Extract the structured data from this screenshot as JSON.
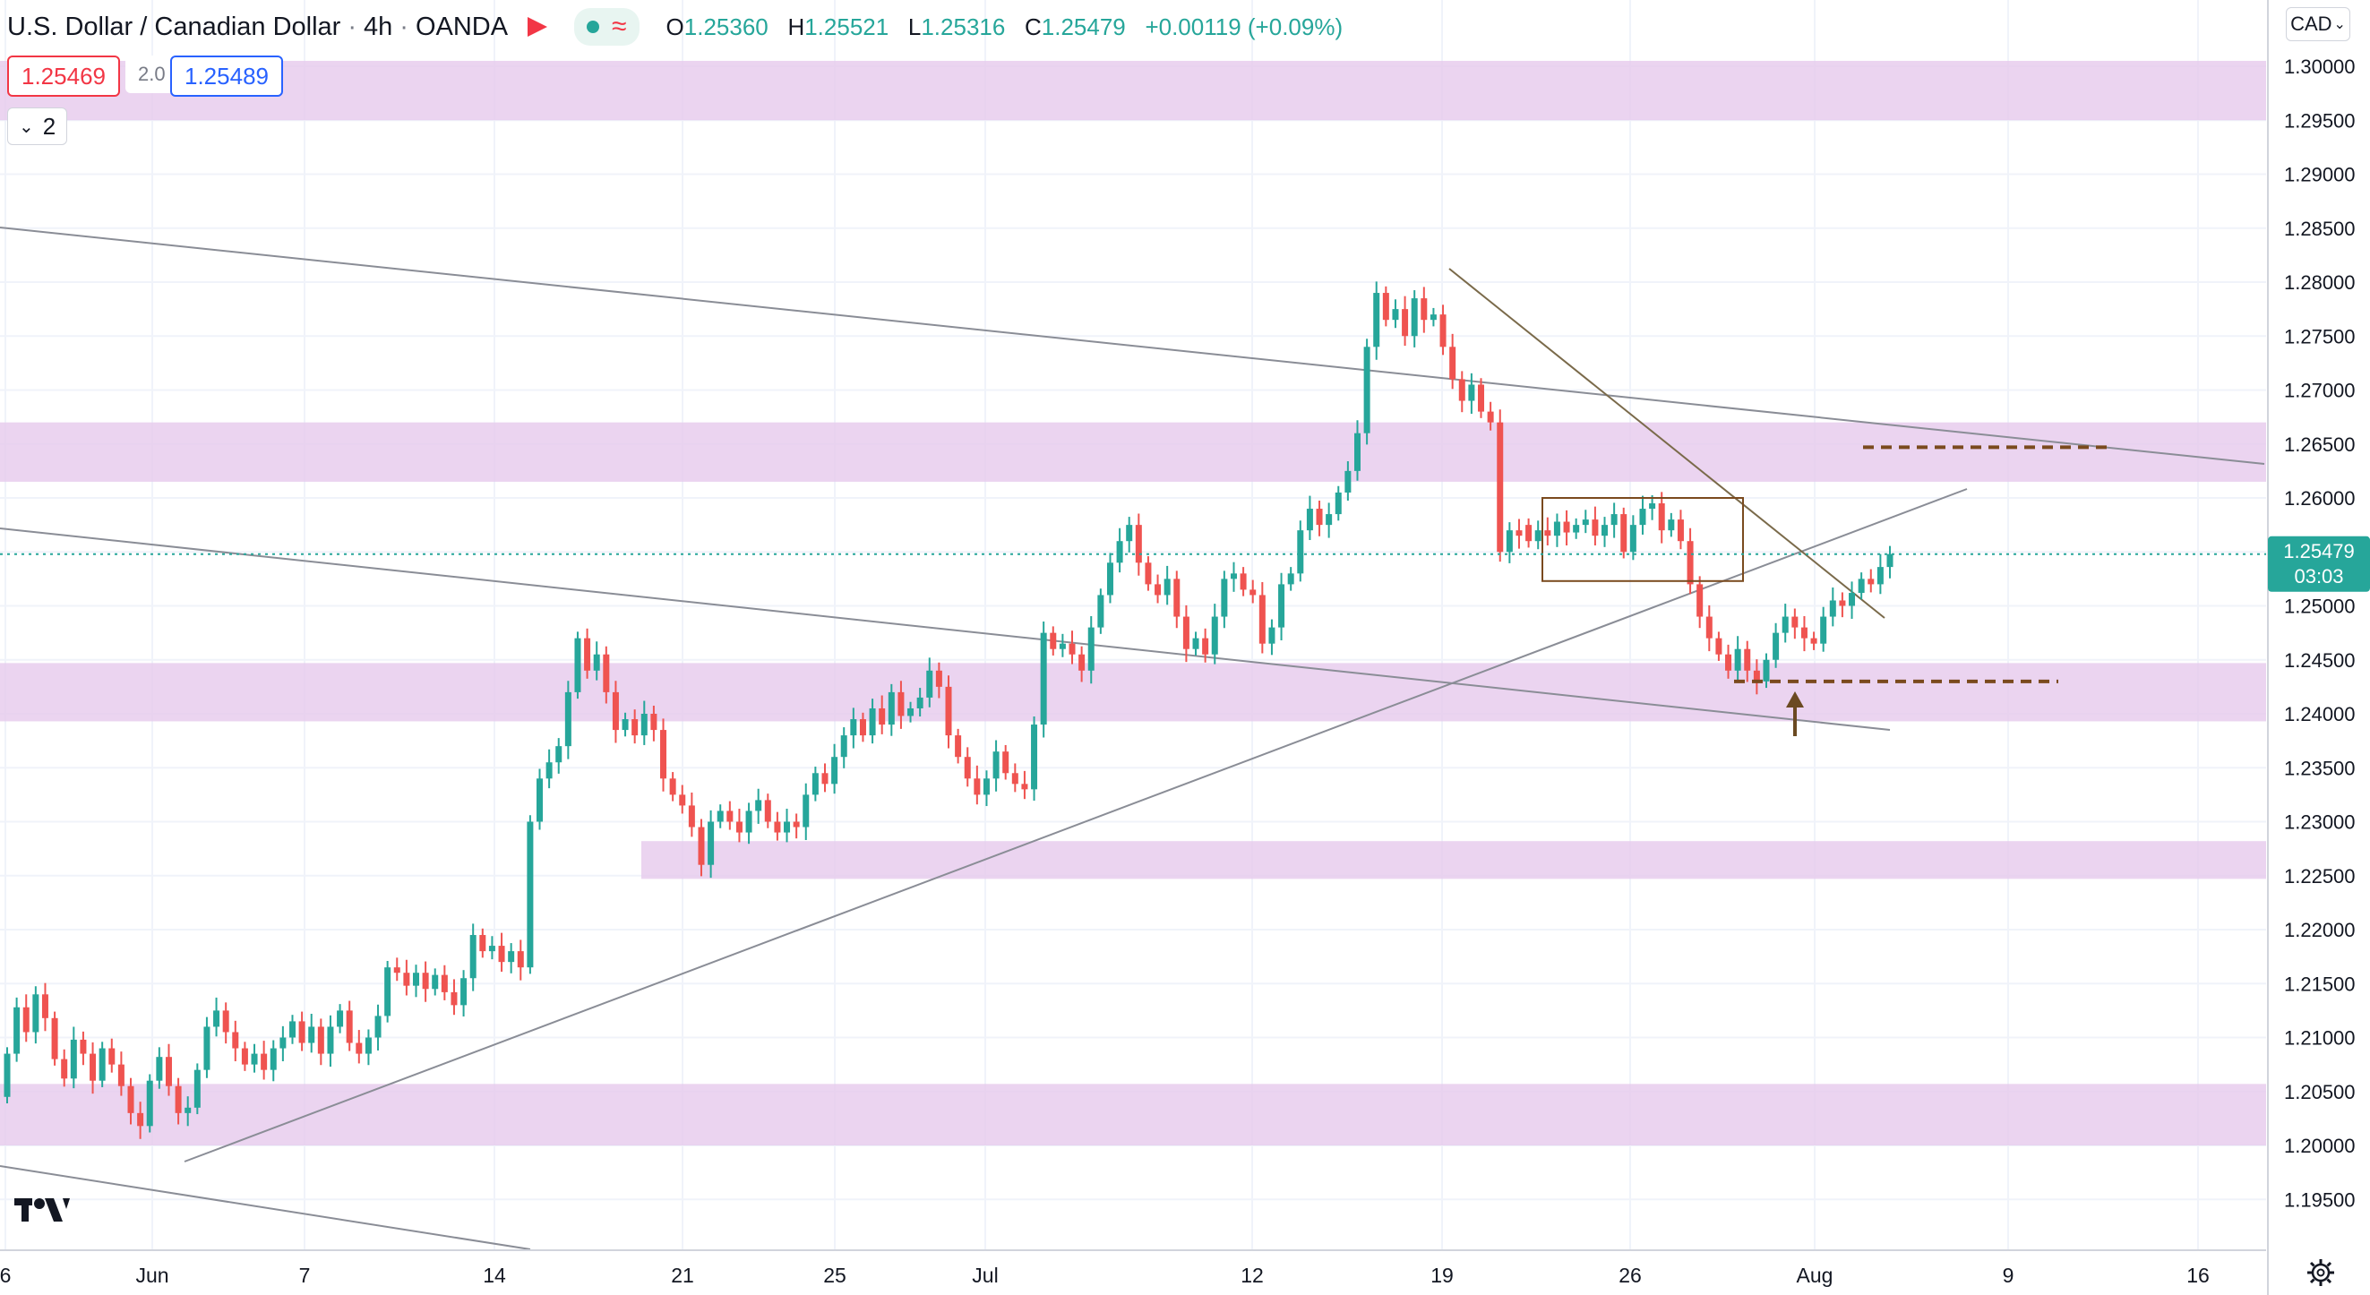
{
  "header": {
    "symbol": "U.S. Dollar / Canadian Dollar",
    "timeframe": "4h",
    "exchange": "OANDA",
    "open_label": "O",
    "open": "1.25360",
    "high_label": "H",
    "high": "1.25521",
    "low_label": "L",
    "low": "1.25316",
    "close_label": "C",
    "close": "1.25479",
    "change": "+0.00119 (+0.09%)"
  },
  "trade": {
    "sell": "1.25469",
    "spread": "2.0",
    "buy": "1.25489"
  },
  "indicators_toggle": {
    "count": "2"
  },
  "currency_select": "CAD",
  "last_price": {
    "value": "1.25479",
    "countdown": "03:03",
    "color": "#26a69a"
  },
  "colors": {
    "up": "#26a69a",
    "down": "#ef5350",
    "zone": "#e6c9ec",
    "level": "#7a4a1e"
  },
  "chart_data": {
    "type": "candlestick",
    "y_ticks": [
      "1.30000",
      "1.29500",
      "1.29000",
      "1.28500",
      "1.28000",
      "1.27500",
      "1.27000",
      "1.26500",
      "1.26000",
      "1.25500",
      "1.25000",
      "1.24500",
      "1.24000",
      "1.23500",
      "1.23000",
      "1.22500",
      "1.22000",
      "1.21500",
      "1.21000",
      "1.20500",
      "1.20000",
      "1.19500"
    ],
    "ylim": [
      1.1908,
      1.3038
    ],
    "x_ticks": [
      "6",
      "Jun",
      "7",
      "14",
      "21",
      "25",
      "Jul",
      "12",
      "19",
      "26",
      "Aug",
      "9",
      "16"
    ],
    "zones": [
      {
        "from": 1.295,
        "to": 1.3005
      },
      {
        "from": 1.2615,
        "to": 1.267
      },
      {
        "from": 1.2393,
        "to": 1.2447
      },
      {
        "from": 1.2247,
        "to": 1.2282
      },
      {
        "from": 1.2,
        "to": 1.2057
      }
    ],
    "horizontal_levels": [
      1.2647,
      1.243
    ],
    "consolidation_box": {
      "from": 1.2523,
      "to": 1.26
    },
    "price_path": [
      [
        1.2045,
        1.2085
      ],
      [
        1.2085,
        1.2128
      ],
      [
        1.2128,
        1.2105
      ],
      [
        1.2105,
        1.214
      ],
      [
        1.214,
        1.2118
      ],
      [
        1.2118,
        1.208
      ],
      [
        1.208,
        1.2062
      ],
      [
        1.2062,
        1.2098
      ],
      [
        1.2098,
        1.2085
      ],
      [
        1.2085,
        1.206
      ],
      [
        1.206,
        1.209
      ],
      [
        1.209,
        1.2075
      ],
      [
        1.2075,
        1.2055
      ],
      [
        1.2055,
        1.203
      ],
      [
        1.203,
        1.2018
      ],
      [
        1.2018,
        1.206
      ],
      [
        1.206,
        1.2082
      ],
      [
        1.2082,
        1.2055
      ],
      [
        1.2055,
        1.203
      ],
      [
        1.203,
        1.2035
      ],
      [
        1.2035,
        1.207
      ],
      [
        1.207,
        1.211
      ],
      [
        1.211,
        1.2125
      ],
      [
        1.2125,
        1.2105
      ],
      [
        1.2105,
        1.209
      ],
      [
        1.209,
        1.2075
      ],
      [
        1.2075,
        1.2085
      ],
      [
        1.2085,
        1.207
      ],
      [
        1.207,
        1.209
      ],
      [
        1.209,
        1.21
      ],
      [
        1.21,
        1.2115
      ],
      [
        1.2115,
        1.2095
      ],
      [
        1.2095,
        1.211
      ],
      [
        1.211,
        1.2085
      ],
      [
        1.2085,
        1.211
      ],
      [
        1.211,
        1.2125
      ],
      [
        1.2125,
        1.2095
      ],
      [
        1.2095,
        1.2085
      ],
      [
        1.2085,
        1.21
      ],
      [
        1.21,
        1.212
      ],
      [
        1.212,
        1.2165
      ],
      [
        1.2165,
        1.216
      ],
      [
        1.216,
        1.2148
      ],
      [
        1.2148,
        1.216
      ],
      [
        1.216,
        1.2145
      ],
      [
        1.2145,
        1.2158
      ],
      [
        1.2158,
        1.2142
      ],
      [
        1.2142,
        1.213
      ],
      [
        1.213,
        1.2155
      ],
      [
        1.2155,
        1.2195
      ],
      [
        1.2195,
        1.218
      ],
      [
        1.218,
        1.2185
      ],
      [
        1.2185,
        1.217
      ],
      [
        1.217,
        1.218
      ],
      [
        1.218,
        1.2165
      ],
      [
        1.2165,
        1.23
      ],
      [
        1.23,
        1.234
      ],
      [
        1.234,
        1.2355
      ],
      [
        1.2355,
        1.237
      ],
      [
        1.237,
        1.242
      ],
      [
        1.242,
        1.247
      ],
      [
        1.247,
        1.244
      ],
      [
        1.244,
        1.2455
      ],
      [
        1.2455,
        1.242
      ],
      [
        1.242,
        1.2385
      ],
      [
        1.2385,
        1.2395
      ],
      [
        1.2395,
        1.238
      ],
      [
        1.238,
        1.24
      ],
      [
        1.24,
        1.2385
      ],
      [
        1.2385,
        1.234
      ],
      [
        1.234,
        1.2325
      ],
      [
        1.2325,
        1.2315
      ],
      [
        1.2315,
        1.2295
      ],
      [
        1.2295,
        1.226
      ],
      [
        1.226,
        1.23
      ],
      [
        1.23,
        1.231
      ],
      [
        1.231,
        1.23
      ],
      [
        1.23,
        1.229
      ],
      [
        1.229,
        1.231
      ],
      [
        1.231,
        1.232
      ],
      [
        1.232,
        1.23
      ],
      [
        1.23,
        1.229
      ],
      [
        1.229,
        1.23
      ],
      [
        1.23,
        1.2295
      ],
      [
        1.2295,
        1.2325
      ],
      [
        1.2325,
        1.2345
      ],
      [
        1.2345,
        1.2335
      ],
      [
        1.2335,
        1.236
      ],
      [
        1.236,
        1.238
      ],
      [
        1.238,
        1.2395
      ],
      [
        1.2395,
        1.238
      ],
      [
        1.238,
        1.2405
      ],
      [
        1.2405,
        1.239
      ],
      [
        1.239,
        1.242
      ],
      [
        1.242,
        1.2398
      ],
      [
        1.2398,
        1.2405
      ],
      [
        1.2405,
        1.2415
      ],
      [
        1.2415,
        1.244
      ],
      [
        1.244,
        1.2425
      ],
      [
        1.2425,
        1.238
      ],
      [
        1.238,
        1.236
      ],
      [
        1.236,
        1.234
      ],
      [
        1.234,
        1.2325
      ],
      [
        1.2325,
        1.234
      ],
      [
        1.234,
        1.2365
      ],
      [
        1.2365,
        1.2345
      ],
      [
        1.2345,
        1.2335
      ],
      [
        1.2335,
        1.233
      ],
      [
        1.233,
        1.239
      ],
      [
        1.239,
        1.2475
      ],
      [
        1.2475,
        1.246
      ],
      [
        1.246,
        1.2465
      ],
      [
        1.2465,
        1.2455
      ],
      [
        1.2455,
        1.244
      ],
      [
        1.244,
        1.248
      ],
      [
        1.248,
        1.251
      ],
      [
        1.251,
        1.254
      ],
      [
        1.254,
        1.256
      ],
      [
        1.256,
        1.2575
      ],
      [
        1.2575,
        1.254
      ],
      [
        1.254,
        1.252
      ],
      [
        1.252,
        1.251
      ],
      [
        1.251,
        1.2525
      ],
      [
        1.2525,
        1.249
      ],
      [
        1.249,
        1.246
      ],
      [
        1.246,
        1.247
      ],
      [
        1.247,
        1.2455
      ],
      [
        1.2455,
        1.249
      ],
      [
        1.249,
        1.2525
      ],
      [
        1.2525,
        1.253
      ],
      [
        1.253,
        1.2515
      ],
      [
        1.2515,
        1.251
      ],
      [
        1.251,
        1.2465
      ],
      [
        1.2465,
        1.248
      ],
      [
        1.248,
        1.252
      ],
      [
        1.252,
        1.253
      ],
      [
        1.253,
        1.257
      ],
      [
        1.257,
        1.259
      ],
      [
        1.259,
        1.2575
      ],
      [
        1.2575,
        1.2585
      ],
      [
        1.2585,
        1.2605
      ],
      [
        1.2605,
        1.2625
      ],
      [
        1.2625,
        1.266
      ],
      [
        1.266,
        1.274
      ],
      [
        1.274,
        1.279
      ],
      [
        1.279,
        1.2765
      ],
      [
        1.2765,
        1.2775
      ],
      [
        1.2775,
        1.275
      ],
      [
        1.275,
        1.2785
      ],
      [
        1.2785,
        1.2765
      ],
      [
        1.2765,
        1.277
      ],
      [
        1.277,
        1.274
      ],
      [
        1.274,
        1.271
      ],
      [
        1.271,
        1.269
      ],
      [
        1.269,
        1.2705
      ],
      [
        1.2705,
        1.268
      ],
      [
        1.268,
        1.267
      ],
      [
        1.267,
        1.255
      ],
      [
        1.255,
        1.257
      ],
      [
        1.257,
        1.2565
      ],
      [
        1.2575,
        1.256
      ],
      [
        1.256,
        1.257
      ],
      [
        1.257,
        1.2565
      ],
      [
        1.2565,
        1.2578
      ],
      [
        1.2578,
        1.2568
      ],
      [
        1.2568,
        1.2575
      ],
      [
        1.2575,
        1.258
      ],
      [
        1.258,
        1.2565
      ],
      [
        1.2565,
        1.2575
      ],
      [
        1.2575,
        1.2585
      ],
      [
        1.2585,
        1.255
      ],
      [
        1.255,
        1.2575
      ],
      [
        1.2575,
        1.259
      ],
      [
        1.259,
        1.2595
      ],
      [
        1.2595,
        1.257
      ],
      [
        1.257,
        1.258
      ],
      [
        1.258,
        1.256
      ],
      [
        1.256,
        1.252
      ],
      [
        1.252,
        1.249
      ],
      [
        1.249,
        1.247
      ],
      [
        1.247,
        1.2455
      ],
      [
        1.2455,
        1.244
      ],
      [
        1.244,
        1.246
      ],
      [
        1.246,
        1.244
      ],
      [
        1.244,
        1.243
      ],
      [
        1.243,
        1.245
      ],
      [
        1.245,
        1.2475
      ],
      [
        1.2475,
        1.249
      ],
      [
        1.249,
        1.248
      ],
      [
        1.248,
        1.247
      ],
      [
        1.247,
        1.2465
      ],
      [
        1.2465,
        1.249
      ],
      [
        1.249,
        1.2505
      ],
      [
        1.2505,
        1.25
      ],
      [
        1.25,
        1.2512
      ],
      [
        1.2512,
        1.2525
      ],
      [
        1.2525,
        1.252
      ],
      [
        1.252,
        1.2536
      ],
      [
        1.2536,
        1.2548
      ]
    ]
  }
}
